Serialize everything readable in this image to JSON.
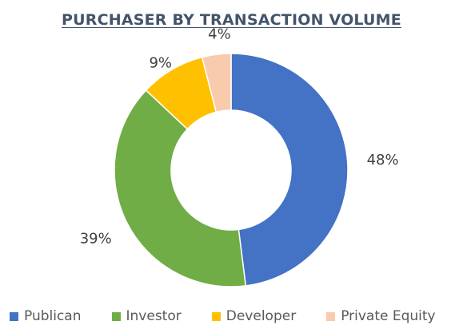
{
  "chart_data": {
    "type": "pie",
    "donut": true,
    "title": "PURCHASER BY TRANSACTION VOLUME",
    "categories": [
      "Publican",
      "Investor",
      "Developer",
      "Private Equity"
    ],
    "values": [
      48,
      39,
      9,
      4
    ],
    "labels": [
      "48%",
      "39%",
      "9%",
      "4%"
    ],
    "colors": [
      "#4472c4",
      "#70ad47",
      "#ffc000",
      "#f8cbad"
    ],
    "legend_position": "bottom"
  }
}
